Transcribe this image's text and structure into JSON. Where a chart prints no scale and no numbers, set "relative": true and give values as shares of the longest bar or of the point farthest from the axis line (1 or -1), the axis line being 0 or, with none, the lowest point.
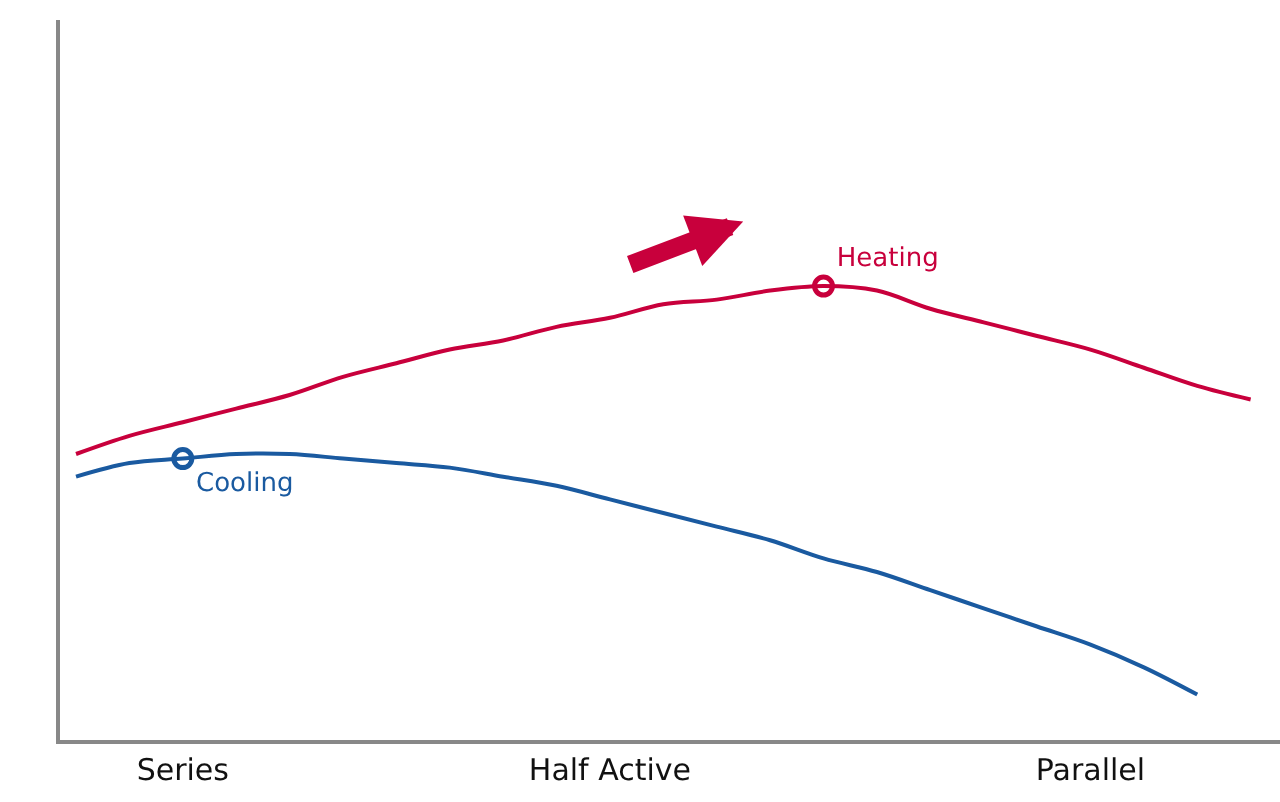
{
  "chart_data": {
    "type": "line",
    "relative": true,
    "legend": false,
    "tick_labels": "x",
    "marker": "none",
    "line_style": "solid",
    "categories": [
      null,
      null,
      "Series",
      null,
      null,
      null,
      null,
      null,
      null,
      null,
      "Half Active",
      null,
      null,
      null,
      null,
      null,
      null,
      null,
      null,
      "Parallel",
      null,
      null,
      null
    ],
    "series": [
      {
        "color": "#c8003c",
        "values": [
          0.63,
          0.67,
          0.7,
          0.73,
          0.76,
          0.8,
          0.83,
          0.86,
          0.88,
          0.91,
          0.93,
          0.96,
          0.97,
          0.99,
          1.0,
          0.99,
          0.95,
          0.92,
          0.89,
          0.86,
          0.82,
          0.78,
          0.75
        ]
      },
      {
        "color": "#1a5aa0",
        "values": [
          0.58,
          0.61,
          0.62,
          0.63,
          0.63,
          0.62,
          0.61,
          0.6,
          0.58,
          0.56,
          0.53,
          0.5,
          0.47,
          0.44,
          0.4,
          0.37,
          0.33,
          0.29,
          0.25,
          0.21,
          0.16,
          0.1,
          null
        ]
      },
      {
        "type": "scatter",
        "marker": "circle",
        "name": "Heating",
        "color": "#c8003c",
        "values": [
          null,
          null,
          null,
          null,
          null,
          null,
          null,
          null,
          null,
          null,
          null,
          null,
          null,
          null,
          1.0,
          null,
          null,
          null,
          null,
          null,
          null,
          null,
          null
        ]
      },
      {
        "type": "scatter",
        "marker": "circle",
        "name": "Cooling",
        "color": "#1a5aa0",
        "values": [
          null,
          null,
          0.62,
          null,
          null,
          null,
          null,
          null,
          null,
          null,
          null,
          null,
          null,
          null,
          null,
          null,
          null,
          null,
          null,
          null,
          null,
          null,
          null
        ]
      }
    ]
  }
}
